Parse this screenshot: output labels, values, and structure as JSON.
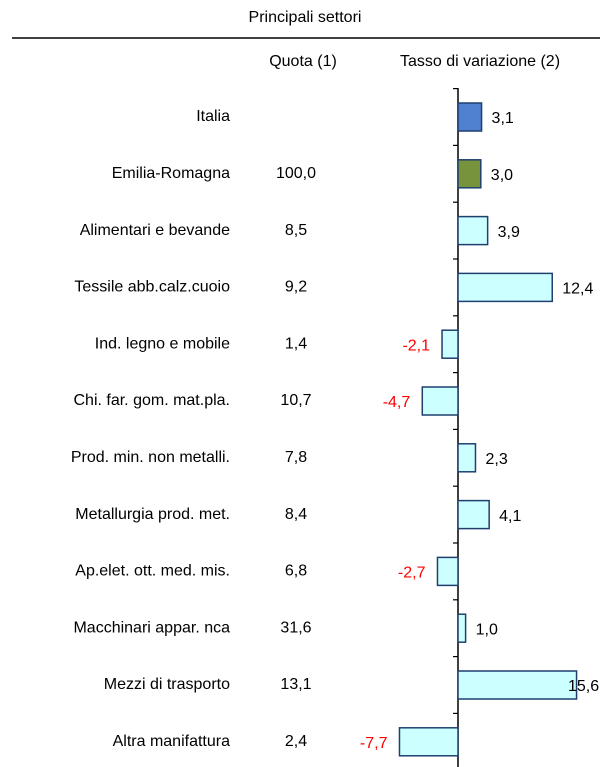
{
  "chart_data": {
    "type": "bar",
    "orientation": "horizontal",
    "title": "Principali settori",
    "column_headers": [
      "Quota (1)",
      "Tasso di variazione (2)"
    ],
    "categories": [
      "Italia",
      "Emilia-Romagna",
      "Alimentari e bevande",
      "Tessile abb.calz.cuoio",
      "Ind. legno e mobile",
      "Chi. far. gom. mat.pla.",
      "Prod. min. non metalli.",
      "Metallurgia prod. met.",
      "Ap.elet. ott. med. mis.",
      "Macchinari appar. nca",
      "Mezzi di trasporto",
      "Altra manifattura"
    ],
    "quota": [
      null,
      100.0,
      8.5,
      9.2,
      1.4,
      10.7,
      7.8,
      8.4,
      6.8,
      31.6,
      13.1,
      2.4
    ],
    "quota_labels": [
      null,
      "100,0",
      "8,5",
      "9,2",
      "1,4",
      "10,7",
      "7,8",
      "8,4",
      "6,8",
      "31,6",
      "13,1",
      "2,4"
    ],
    "values": [
      3.1,
      3.0,
      3.9,
      12.4,
      -2.1,
      -4.7,
      2.3,
      4.1,
      -2.7,
      1.0,
      15.6,
      -7.7
    ],
    "value_labels": [
      "3,1",
      "3,0",
      "3,9",
      "12,4",
      "-2,1",
      "-4,7",
      "2,3",
      "4,1",
      "-2,7",
      "1,0",
      "15,6",
      "-7,7"
    ],
    "colors": [
      "#4f81d0",
      "#77933c",
      "#ccffff",
      "#ccffff",
      "#ccffff",
      "#ccffff",
      "#ccffff",
      "#ccffff",
      "#ccffff",
      "#ccffff",
      "#ccffff",
      "#ccffff"
    ],
    "negative_label_color": "#ff0000",
    "xlim": [
      -8,
      16
    ]
  }
}
